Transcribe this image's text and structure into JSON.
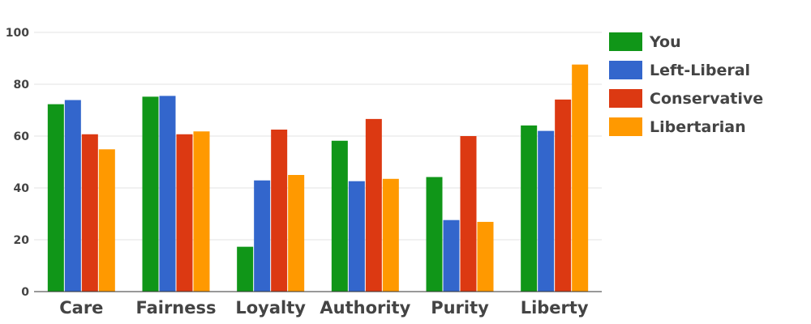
{
  "chart_data": {
    "type": "bar",
    "title": "",
    "xlabel": "",
    "ylabel": "",
    "ylim": [
      0,
      100
    ],
    "yticks": [
      0,
      20,
      40,
      60,
      80,
      100
    ],
    "grid": true,
    "legend_position": "right",
    "categories": [
      "Care",
      "Fairness",
      "Loyalty",
      "Authority",
      "Purity",
      "Liberty"
    ],
    "series": [
      {
        "name": "You",
        "color": "#109618",
        "values": [
          72.3,
          75.2,
          17.3,
          58.2,
          44.2,
          64.1
        ]
      },
      {
        "name": "Left-Liberal",
        "color": "#3366cc",
        "values": [
          73.9,
          75.5,
          42.9,
          42.6,
          27.6,
          62.0
        ]
      },
      {
        "name": "Conservative",
        "color": "#dc3912",
        "values": [
          60.7,
          60.7,
          62.5,
          66.6,
          60.0,
          74.1
        ]
      },
      {
        "name": "Libertarian",
        "color": "#ff9900",
        "values": [
          54.9,
          61.8,
          45.0,
          43.5,
          26.9,
          87.6
        ]
      }
    ]
  }
}
